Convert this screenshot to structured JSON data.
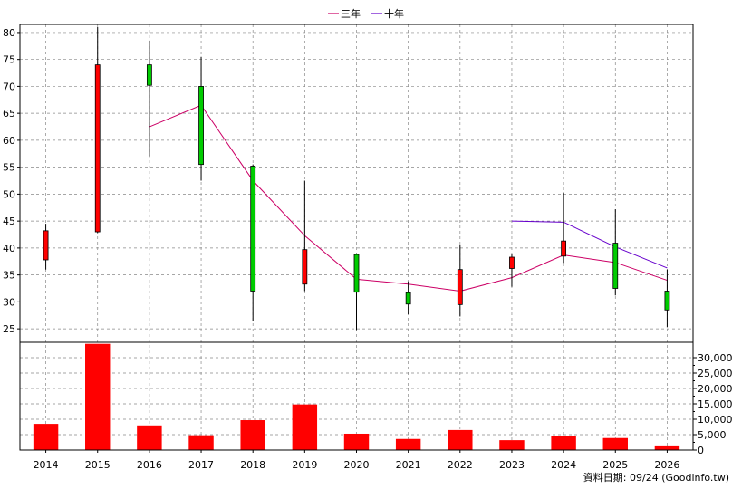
{
  "chart_data": {
    "type": "candlestick",
    "legend": [
      {
        "name": "三年",
        "color": "#cc0066"
      },
      {
        "name": "十年",
        "color": "#6600cc"
      }
    ],
    "years": [
      "2014",
      "2015",
      "2016",
      "2017",
      "2018",
      "2019",
      "2020",
      "2021",
      "2022",
      "2023",
      "2024",
      "2025",
      "2026"
    ],
    "price_axis": {
      "ylim": [
        22.5,
        81.5
      ],
      "ticks": [
        25,
        30,
        35,
        40,
        45,
        50,
        55,
        60,
        65,
        70,
        75,
        80
      ]
    },
    "volume_axis": {
      "ylim": [
        0,
        35000
      ],
      "ticks": [
        0,
        5000,
        10000,
        15000,
        20000,
        25000,
        30000
      ],
      "tick_labels": [
        "0",
        "5,000",
        "10,000",
        "15,000",
        "20,000",
        "25,000",
        "30,000"
      ]
    },
    "candles": [
      {
        "year": "2014",
        "open": 37.8,
        "high": 44.5,
        "low": 36.0,
        "close": 43.2
      },
      {
        "year": "2015",
        "open": 43.0,
        "high": 81.0,
        "low": 42.8,
        "close": 74.0
      },
      {
        "year": "2016",
        "open": 74.0,
        "high": 78.5,
        "low": 57.0,
        "close": 70.2
      },
      {
        "year": "2017",
        "open": 70.0,
        "high": 75.5,
        "low": 52.5,
        "close": 55.5
      },
      {
        "year": "2018",
        "open": 55.2,
        "high": 55.5,
        "low": 26.5,
        "close": 32.0
      },
      {
        "year": "2019",
        "open": 33.3,
        "high": 52.5,
        "low": 32.0,
        "close": 39.7
      },
      {
        "year": "2020",
        "open": 38.8,
        "high": 39.0,
        "low": 24.8,
        "close": 31.8
      },
      {
        "year": "2021",
        "open": 31.7,
        "high": 33.8,
        "low": 27.7,
        "close": 29.6
      },
      {
        "year": "2022",
        "open": 29.5,
        "high": 40.5,
        "low": 27.3,
        "close": 36.0
      },
      {
        "year": "2023",
        "open": 36.2,
        "high": 38.8,
        "low": 32.8,
        "close": 38.3
      },
      {
        "year": "2024",
        "open": 38.5,
        "high": 50.3,
        "low": 37.2,
        "close": 41.3
      },
      {
        "year": "2025",
        "open": 40.9,
        "high": 47.2,
        "low": 31.2,
        "close": 32.5
      },
      {
        "year": "2026",
        "open": 32.0,
        "high": 36.0,
        "low": 25.3,
        "close": 28.5
      }
    ],
    "series": [
      {
        "name": "三年",
        "color": "#cc0066",
        "points": [
          [
            "2016",
            62.5
          ],
          [
            "2017",
            66.5
          ],
          [
            "2018",
            52.5
          ],
          [
            "2019",
            42.3
          ],
          [
            "2020",
            34.2
          ],
          [
            "2021",
            33.3
          ],
          [
            "2022",
            32.0
          ],
          [
            "2023",
            34.5
          ],
          [
            "2024",
            38.7
          ],
          [
            "2025",
            37.3
          ],
          [
            "2026",
            34.0
          ]
        ]
      },
      {
        "name": "十年",
        "color": "#6600cc",
        "points": [
          [
            "2023",
            45.0
          ],
          [
            "2024",
            44.8
          ],
          [
            "2025",
            40.2
          ],
          [
            "2026",
            36.3
          ]
        ]
      }
    ],
    "volumes": [
      8500,
      34500,
      8000,
      4800,
      9700,
      14800,
      5300,
      3600,
      6500,
      3200,
      4500,
      3900,
      1500
    ],
    "colors": {
      "up": "#ff0000",
      "down": "#00cc00",
      "volume": "#ff0000",
      "grid": "#888888"
    }
  },
  "footer": {
    "credit": "資料日期: 09/24 (Goodinfo.tw)"
  }
}
